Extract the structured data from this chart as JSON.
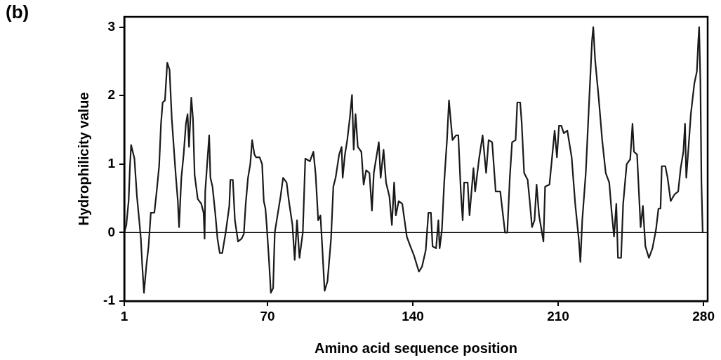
{
  "chart_data": {
    "type": "line",
    "xlabel": "Amino acid sequence position",
    "ylabel": "Hydrophilicity value",
    "annotations": [
      "(b)"
    ],
    "xlim": [
      1,
      282
    ],
    "ylim": [
      -1,
      3.15
    ],
    "xticks": [
      1,
      70,
      140,
      210,
      280
    ],
    "yticks": [
      -1,
      0,
      1,
      2,
      3
    ],
    "grid": false,
    "legend": false,
    "marker": "none",
    "line_style": "solid",
    "ref_lines": [
      {
        "axis": "y",
        "value": 0,
        "label": null,
        "color": "#000000"
      }
    ],
    "series": [
      {
        "color": "#1a1a1a",
        "x": [
          1,
          2,
          3.1,
          3.7,
          4.3,
          5.9,
          7.1,
          8.2,
          9,
          9.7,
          10.5,
          11.6,
          12.7,
          13.8,
          15.5,
          16.6,
          17.8,
          18.7,
          19.5,
          20.6,
          21.7,
          22.8,
          23.9,
          25.1,
          25.9,
          26.8,
          27.4,
          28.5,
          29.6,
          30.7,
          31.5,
          32.2,
          33.3,
          34.1,
          34.9,
          36.4,
          38.1,
          39.2,
          39.7,
          40,
          41.9,
          42.5,
          43.5,
          44.8,
          45.9,
          47,
          48.2,
          49.9,
          51.6,
          52.1,
          53.3,
          54.3,
          55.8,
          57.5,
          58.6,
          59.5,
          60.6,
          61.7,
          62.6,
          63.7,
          64.5,
          66.2,
          67.4,
          68.2,
          69,
          69.6,
          70.7,
          71.6,
          72.7,
          73.5,
          74.6,
          76.3,
          77.5,
          79.2,
          80.3,
          82,
          83.1,
          84.2,
          85.4,
          87,
          88.2,
          90.4,
          92.1,
          93.2,
          94.4,
          95.5,
          96.4,
          97.5,
          98.9,
          100.6,
          101.7,
          102.8,
          104.5,
          105.7,
          106.2,
          107.3,
          108.4,
          109.6,
          110.7,
          111.5,
          112.4,
          113.5,
          115.2,
          116.3,
          117.5,
          119.1,
          120.3,
          121.2,
          123.6,
          124.5,
          125.9,
          127.1,
          128.7,
          129.9,
          131,
          131.8,
          133.2,
          134.9,
          137.1,
          138.8,
          140.5,
          142.9,
          144.4,
          146.2,
          147.5,
          148.7,
          149.5,
          151.2,
          152.3,
          152.9,
          154,
          155.1,
          156.5,
          157.4,
          158.3,
          159.1,
          160.8,
          161.9,
          163.1,
          164,
          164.7,
          166.4,
          167.3,
          169.2,
          170,
          171.9,
          173.6,
          175.3,
          176.5,
          178.2,
          179.9,
          182.1,
          184.4,
          185.5,
          186.7,
          187.8,
          189.5,
          190.3,
          191.7,
          192.4,
          193.6,
          195.3,
          196.3,
          197.4,
          198.6,
          199.6,
          200.8,
          202.9,
          203.7,
          205.8,
          207.2,
          208.3,
          209.4,
          210.4,
          211.5,
          212.7,
          214.4,
          216.5,
          218.2,
          219.9,
          220.7,
          221.6,
          223.3,
          225,
          226.3,
          226.9,
          227.8,
          229.5,
          231.2,
          232.9,
          234.6,
          235.7,
          236.9,
          238,
          238.8,
          240.3,
          241.3,
          243,
          244.7,
          245.8,
          246.5,
          248,
          249.7,
          250.8,
          252,
          253.7,
          255.4,
          257.1,
          258.3,
          259.3,
          259.9,
          261.6,
          262.7,
          264.2,
          266.1,
          267.8,
          269,
          270.3,
          271.1,
          271.7,
          272.8,
          273.9,
          275.6,
          276.8,
          277.5,
          277.9,
          278.5,
          279,
          279.6
        ],
        "values": [
          0,
          0.11,
          0.46,
          0.94,
          1.28,
          1.08,
          0.53,
          0.18,
          -0.09,
          -0.5,
          -0.88,
          -0.5,
          -0.2,
          0.29,
          0.29,
          0.6,
          0.97,
          1.59,
          1.9,
          1.93,
          2.48,
          2.38,
          1.66,
          1.14,
          0.8,
          0.46,
          0.08,
          0.8,
          1.14,
          1.59,
          1.73,
          1.25,
          1.97,
          1.66,
          0.84,
          0.49,
          0.42,
          0.29,
          -0.09,
          0.6,
          1.42,
          0.8,
          0.67,
          0.29,
          -0.09,
          -0.3,
          -0.3,
          0.01,
          0.39,
          0.77,
          0.77,
          0.18,
          -0.13,
          -0.09,
          -0.02,
          0.42,
          0.8,
          1.0,
          1.35,
          1.14,
          1.1,
          1.1,
          1.0,
          0.46,
          0.35,
          0.11,
          -0.4,
          -0.88,
          -0.81,
          0,
          0.21,
          0.53,
          0.8,
          0.73,
          0.46,
          0.11,
          -0.4,
          0.18,
          -0.37,
          0,
          1.08,
          1.04,
          1.18,
          0.84,
          0.18,
          0.25,
          -0.23,
          -0.85,
          -0.71,
          -0.09,
          0.67,
          0.8,
          1.14,
          1.25,
          0.8,
          1.14,
          1.35,
          1.66,
          2.01,
          1.21,
          1.73,
          1.25,
          1.18,
          0.7,
          0.91,
          0.87,
          0.32,
          0.87,
          1.32,
          0.8,
          1.21,
          0.73,
          0.53,
          0.11,
          0.73,
          0.25,
          0.46,
          0.42,
          -0.06,
          -0.2,
          -0.33,
          -0.57,
          -0.5,
          -0.26,
          0.29,
          0.29,
          -0.2,
          -0.23,
          0.18,
          -0.23,
          0.04,
          0.73,
          1.38,
          1.93,
          1.62,
          1.35,
          1.42,
          1.42,
          0.6,
          0.18,
          0.73,
          0.73,
          0.25,
          0.94,
          0.6,
          1.08,
          1.42,
          0.87,
          1.35,
          1.32,
          0.6,
          0.6,
          0,
          0,
          0.8,
          1.32,
          1.35,
          1.9,
          1.9,
          1.62,
          0.87,
          0.77,
          0.46,
          0.08,
          0.18,
          0.7,
          0.25,
          -0.13,
          0.67,
          0.7,
          1.14,
          1.49,
          1.1,
          1.56,
          1.56,
          1.45,
          1.49,
          1.1,
          0.42,
          -0.09,
          -0.43,
          0.18,
          0.87,
          1.97,
          2.8,
          3.0,
          2.52,
          1.97,
          1.35,
          0.87,
          0.73,
          0.32,
          -0.06,
          0.42,
          -0.37,
          -0.37,
          0.42,
          1.0,
          1.07,
          1.59,
          1.18,
          1.14,
          0.08,
          0.39,
          -0.2,
          -0.37,
          -0.23,
          0.04,
          0.35,
          0.35,
          0.97,
          0.97,
          0.8,
          0.46,
          0.56,
          0.6,
          0.94,
          1.18,
          1.59,
          0.8,
          1.25,
          1.73,
          2.18,
          2.35,
          2.8,
          3.0,
          2.21,
          0.74,
          0
        ]
      }
    ]
  }
}
